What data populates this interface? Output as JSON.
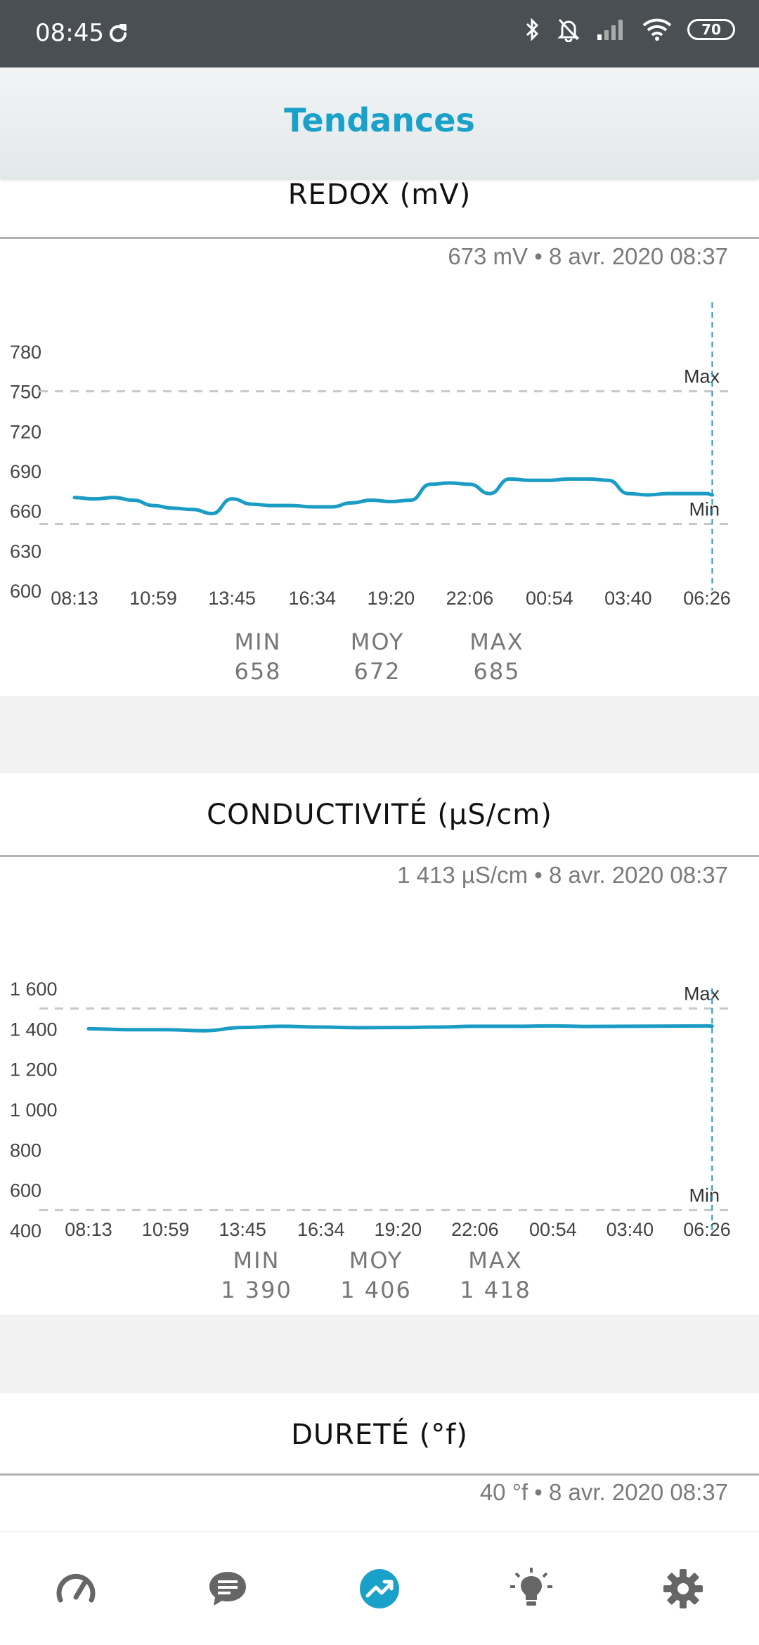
{
  "status_bar": {
    "time": "08:45",
    "battery": "70"
  },
  "header": {
    "title": "Tendances"
  },
  "charts": [
    {
      "title": "REDOX (mV)",
      "latest": "673 mV • 8 avr. 2020 08:37",
      "y_ticks": [
        "780",
        "750",
        "720",
        "690",
        "660",
        "630",
        "600"
      ],
      "x_ticks": [
        "08:13",
        "10:59",
        "13:45",
        "16:34",
        "19:20",
        "22:06",
        "00:54",
        "03:40",
        "06:26"
      ],
      "max_label": "Max",
      "min_label": "Min",
      "stats": {
        "min_label": "MIN",
        "min": "658",
        "avg_label": "MOY",
        "avg": "672",
        "max_label": "MAX",
        "max": "685"
      }
    },
    {
      "title": "CONDUCTIVITÉ (µS/cm)",
      "latest": "1 413 µS/cm • 8 avr. 2020 08:37",
      "y_ticks": [
        "1 600",
        "1 400",
        "1 200",
        "1 000",
        "800",
        "600",
        "400"
      ],
      "x_ticks": [
        "08:13",
        "10:59",
        "13:45",
        "16:34",
        "19:20",
        "22:06",
        "00:54",
        "03:40",
        "06:26"
      ],
      "max_label": "Max",
      "min_label": "Min",
      "stats": {
        "min_label": "MIN",
        "min": "1 390",
        "avg_label": "MOY",
        "avg": "1 406",
        "max_label": "MAX",
        "max": "1 418"
      }
    },
    {
      "title": "DURETÉ (°f)",
      "latest": "40 °f • 8 avr. 2020 08:37"
    }
  ],
  "chart_data": [
    {
      "type": "line",
      "title": "REDOX (mV)",
      "ylim": [
        600,
        780
      ],
      "thresholds": {
        "max": 750,
        "min": 650
      },
      "series": [
        {
          "color": "#1a9cc4",
          "x": [
            "08:13",
            "08:54",
            "09:36",
            "10:17",
            "10:59",
            "11:40",
            "12:22",
            "13:03",
            "13:45",
            "14:27",
            "15:09",
            "15:51",
            "16:34",
            "17:15",
            "17:57",
            "18:38",
            "19:20",
            "20:01",
            "20:43",
            "21:24",
            "22:06",
            "22:48",
            "23:30",
            "00:12",
            "00:54",
            "01:35",
            "02:17",
            "02:58",
            "03:40",
            "04:21",
            "05:03",
            "05:44",
            "06:26",
            "06:37"
          ],
          "values": [
            670,
            669,
            670,
            668,
            664,
            662,
            661,
            658,
            669,
            665,
            664,
            664,
            663,
            663,
            666,
            668,
            667,
            668,
            680,
            681,
            680,
            673,
            684,
            683,
            683,
            684,
            684,
            683,
            673,
            672,
            673,
            673,
            673,
            672
          ]
        }
      ],
      "latest_value": 673
    },
    {
      "type": "line",
      "title": "CONDUCTIVITÉ (µS/cm)",
      "ylim": [
        400,
        1600
      ],
      "thresholds": {
        "max": 1500,
        "min": 500
      },
      "series": [
        {
          "color": "#1a9cc4",
          "x": [
            "08:13",
            "09:36",
            "10:59",
            "12:22",
            "13:45",
            "15:09",
            "16:34",
            "17:57",
            "19:20",
            "20:43",
            "22:06",
            "23:30",
            "00:54",
            "02:17",
            "03:40",
            "05:03",
            "06:26",
            "06:37"
          ],
          "values": [
            1400,
            1395,
            1395,
            1390,
            1406,
            1412,
            1408,
            1405,
            1406,
            1408,
            1412,
            1412,
            1414,
            1411,
            1412,
            1413,
            1414,
            1413
          ]
        }
      ],
      "latest_value": 1413
    }
  ],
  "nav": {
    "items": [
      "gauge-icon",
      "chat-icon",
      "trends-icon",
      "bulb-icon",
      "gear-icon"
    ],
    "active_color": "#1aa1c9",
    "color": "#666666"
  }
}
